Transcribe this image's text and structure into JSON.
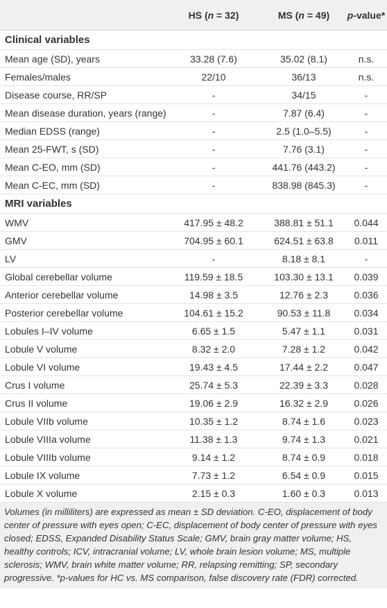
{
  "header": {
    "columns": [
      [
        "HS (",
        "n",
        " = 32)"
      ],
      [
        "MS (",
        "n",
        " = 49)"
      ],
      [
        "",
        "p",
        "-value*"
      ]
    ]
  },
  "sections": [
    {
      "title": "Clinical variables",
      "rows": [
        [
          "Mean age (SD), years",
          "33.28 (7.6)",
          "35.02 (8.1)",
          "n.s."
        ],
        [
          "Females/males",
          "22/10",
          "36/13",
          "n.s."
        ],
        [
          "Disease course, RR/SP",
          "-",
          "34/15",
          "-"
        ],
        [
          "Mean disease duration, years (range)",
          "-",
          "7.87 (6.4)",
          "-"
        ],
        [
          "Median EDSS (range)",
          "-",
          "2.5 (1.0–5.5)",
          "-"
        ],
        [
          "Mean 25-FWT, s (SD)",
          "-",
          "7.76 (3.1)",
          "-"
        ],
        [
          "Mean C-EO, mm (SD)",
          "-",
          "441.76 (443.2)",
          "-"
        ],
        [
          "Mean C-EC, mm (SD)",
          "-",
          "838.98 (845.3)",
          "-"
        ]
      ]
    },
    {
      "title": "MRI variables",
      "rows": [
        [
          "WMV",
          "417.95 ± 48.2",
          "388.81 ± 51.1",
          "0.044"
        ],
        [
          "GMV",
          "704.95 ± 60.1",
          "624.51 ± 63.8",
          "0.011"
        ],
        [
          "LV",
          "-",
          "8.18 ± 8.1",
          "-"
        ],
        [
          "Global cerebellar volume",
          "119.59 ± 18.5",
          "103.30 ± 13.1",
          "0.039"
        ],
        [
          "Anterior cerebellar volume",
          "14.98 ± 3.5",
          "12.76 ± 2.3",
          "0.036"
        ],
        [
          "Posterior cerebellar volume",
          "104.61 ± 15.2",
          "90.53 ± 11.8",
          "0.034"
        ],
        [
          "Lobules I–IV volume",
          "6.65 ± 1.5",
          "5.47 ± 1.1",
          "0.031"
        ],
        [
          "Lobule V volume",
          "8.32 ± 2.0",
          "7.28 ± 1.2",
          "0.042"
        ],
        [
          "Lobule VI volume",
          "19.43 ± 4.5",
          "17.44 ± 2.2",
          "0.047"
        ],
        [
          "Crus I volume",
          "25.74 ± 5.3",
          "22.39 ± 3.3",
          "0.028"
        ],
        [
          "Crus II volume",
          "19.06 ± 2.9",
          "16.32 ± 2.9",
          "0.026"
        ],
        [
          "Lobule VIIb volume",
          "10.35 ± 1.2",
          "8.74 ± 1.6",
          "0.023"
        ],
        [
          "Lobule VIIIa volume",
          "11.38 ± 1.3",
          "9.74 ± 1.3",
          "0.021"
        ],
        [
          "Lobule VIIIb volume",
          "9.14 ± 1.2",
          "8.74 ± 0.9",
          "0.018"
        ],
        [
          "Lobule IX volume",
          "7.73 ± 1.2",
          "6.54 ± 0.9",
          "0.015"
        ],
        [
          "Lobule X volume",
          "2.15 ± 0.3",
          "1.60 ± 0.3",
          "0.013"
        ]
      ]
    }
  ],
  "footnote": "Volumes (in milliliters) are expressed as mean ± SD deviation. C-EO, displacement of body center of pressure with eyes open; C-EC, displacement of body center of pressure with eyes closed; EDSS, Expanded Disability Status Scale; GMV, brain gray matter volume; HS, healthy controls; ICV, intracranial volume; LV, whole brain lesion volume; MS, multiple sclerosis; WMV, brain white matter volume; RR, relapsing remitting; SP, secondary progressive. *p-values for HC vs. MS comparison, false discovery rate (FDR) corrected."
}
